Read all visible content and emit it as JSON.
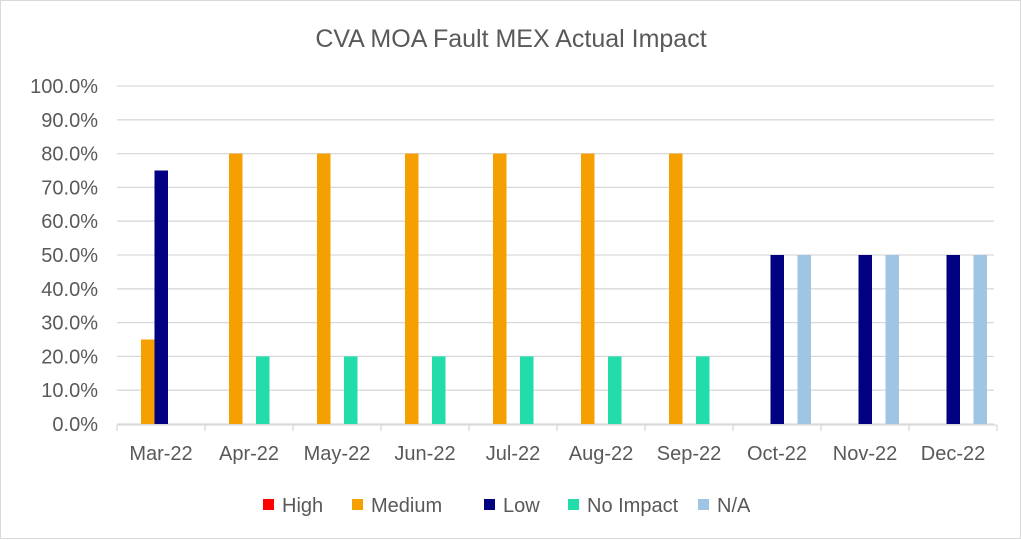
{
  "chart_data": {
    "type": "bar",
    "title": "CVA MOA Fault MEX Actual Impact",
    "xlabel": "",
    "ylabel": "",
    "ylim": [
      0,
      100
    ],
    "yticks": [
      "0.0%",
      "10.0%",
      "20.0%",
      "30.0%",
      "40.0%",
      "50.0%",
      "60.0%",
      "70.0%",
      "80.0%",
      "90.0%",
      "100.0%"
    ],
    "grid": true,
    "legend_position": "bottom",
    "categories": [
      "Mar-22",
      "Apr-22",
      "May-22",
      "Jun-22",
      "Jul-22",
      "Aug-22",
      "Sep-22",
      "Oct-22",
      "Nov-22",
      "Dec-22"
    ],
    "series": [
      {
        "name": "High",
        "color": "#ff0000",
        "values": [
          0,
          0,
          0,
          0,
          0,
          0,
          0,
          0,
          0,
          0
        ]
      },
      {
        "name": "Medium",
        "color": "#f5a000",
        "values": [
          25,
          80,
          80,
          80,
          80,
          80,
          80,
          0,
          0,
          0
        ]
      },
      {
        "name": "Low",
        "color": "#000080",
        "values": [
          75,
          0,
          0,
          0,
          0,
          0,
          0,
          50,
          50,
          50
        ]
      },
      {
        "name": "No Impact",
        "color": "#22dcaa",
        "values": [
          0,
          20,
          20,
          20,
          20,
          20,
          20,
          0,
          0,
          0
        ]
      },
      {
        "name": "N/A",
        "color": "#a0c4e4",
        "values": [
          0,
          0,
          0,
          0,
          0,
          0,
          0,
          50,
          50,
          50
        ]
      }
    ]
  }
}
